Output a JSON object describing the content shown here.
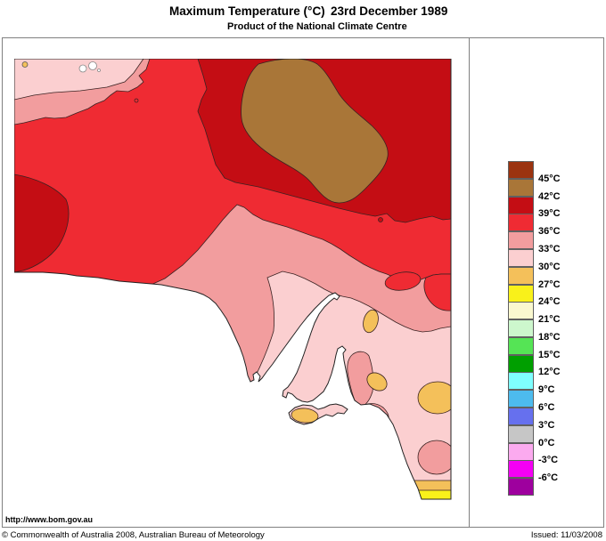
{
  "header": {
    "title": "Maximum Temperature (°C)",
    "date": "23rd December 1989",
    "subtitle": "Product of the National Climate Centre"
  },
  "footer": {
    "url": "http://www.bom.gov.au",
    "copyright": "© Commonwealth of Australia 2008, Australian Bureau of Meteorology",
    "issued": "Issued: 11/03/2008"
  },
  "legend": {
    "unit": "°C",
    "swatch_colors": [
      "#9B3310",
      "#A97638",
      "#C40D14",
      "#EF2B33",
      "#F29D9E",
      "#FBCFD0",
      "#F4C05A",
      "#F9F11A",
      "#FAF8CF",
      "#CDF7CD",
      "#55E455",
      "#009F00",
      "#7FFFFF",
      "#4DBBEE",
      "#6670EE",
      "#C6C6C6",
      "#FBAAEF",
      "#F400F4",
      "#9E009E"
    ],
    "labels": [
      "45°C",
      "42°C",
      "39°C",
      "36°C",
      "33°C",
      "30°C",
      "27°C",
      "24°C",
      "21°C",
      "18°C",
      "15°C",
      "12°C",
      "9°C",
      "6°C",
      "3°C",
      "0°C",
      "-3°C",
      "-6°C"
    ]
  },
  "map": {
    "palette": {
      "t45": "#9B3310",
      "t42": "#A97638",
      "t39": "#C40D14",
      "t36": "#EF2B33",
      "t33": "#F29D9E",
      "t30": "#FBCFD0",
      "t27": "#F4C05A",
      "t24": "#F9F11A",
      "sea": "#FFFFFF"
    }
  }
}
